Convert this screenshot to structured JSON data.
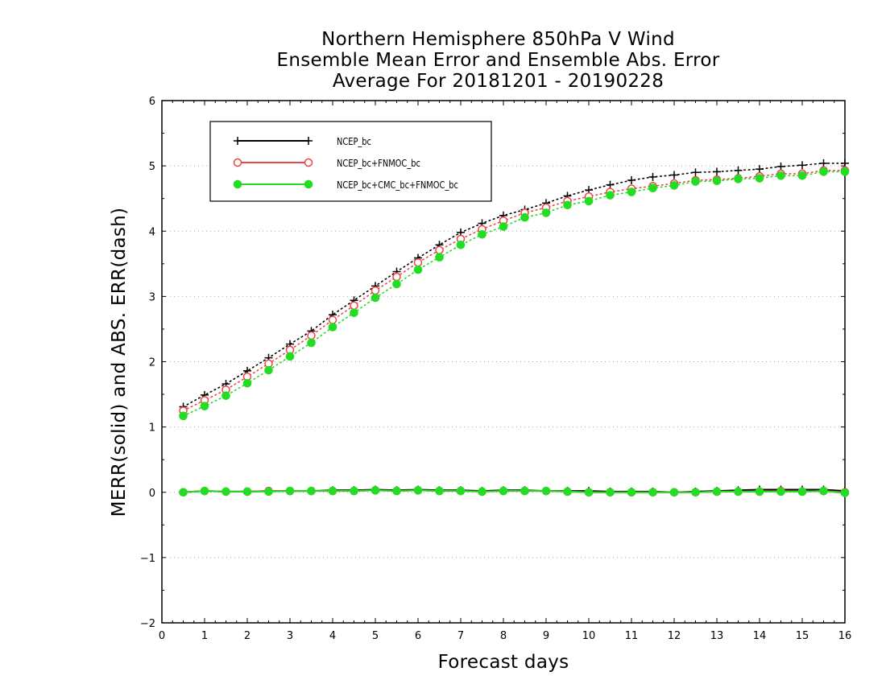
{
  "chart_data": {
    "type": "line",
    "title": [
      "Northern Hemisphere 850hPa V Wind",
      "Ensemble Mean Error and Ensemble Abs. Error",
      "Average For 20181201 - 20190228"
    ],
    "xlabel": "Forecast days",
    "ylabel": "MERR(solid) and ABS. ERR(dash)",
    "xlim": [
      0,
      16
    ],
    "ylim": [
      -2,
      6
    ],
    "xticks": [
      "0",
      "1",
      "2",
      "3",
      "4",
      "5",
      "6",
      "7",
      "8",
      "9",
      "10",
      "11",
      "12",
      "13",
      "14",
      "15",
      "16"
    ],
    "yticks": [
      "-2",
      "-1",
      "0",
      "1",
      "2",
      "3",
      "4",
      "5",
      "6"
    ],
    "grid": "horizontal dotted",
    "legend_position": "top-left",
    "x": [
      0.5,
      1,
      1.5,
      2,
      2.5,
      3,
      3.5,
      4,
      4.5,
      5,
      5.5,
      6,
      6.5,
      7,
      7.5,
      8,
      8.5,
      9,
      9.5,
      10,
      10.5,
      11,
      11.5,
      12,
      12.5,
      13,
      13.5,
      14,
      14.5,
      15,
      15.5,
      16
    ],
    "series": [
      {
        "name": "NCEP_bc",
        "color": "#000000",
        "marker": "plus",
        "abs_err": [
          1.31,
          1.49,
          1.66,
          1.86,
          2.06,
          2.27,
          2.47,
          2.72,
          2.94,
          3.16,
          3.38,
          3.59,
          3.79,
          3.98,
          4.12,
          4.24,
          4.33,
          4.43,
          4.54,
          4.63,
          4.71,
          4.78,
          4.83,
          4.86,
          4.9,
          4.91,
          4.93,
          4.95,
          4.99,
          5.01,
          5.04,
          5.04
        ],
        "mean_err": [
          0.0,
          0.02,
          0.01,
          0.01,
          0.02,
          0.02,
          0.02,
          0.03,
          0.03,
          0.04,
          0.03,
          0.04,
          0.03,
          0.03,
          0.02,
          0.03,
          0.03,
          0.02,
          0.02,
          0.02,
          0.01,
          0.01,
          0.01,
          0.0,
          0.01,
          0.02,
          0.03,
          0.04,
          0.04,
          0.04,
          0.04,
          0.02
        ]
      },
      {
        "name": "NCEP_bc+FNMOC_bc",
        "color": "#ee4444",
        "marker": "open-circle",
        "abs_err": [
          1.25,
          1.41,
          1.57,
          1.77,
          1.97,
          2.18,
          2.4,
          2.64,
          2.86,
          3.09,
          3.3,
          3.52,
          3.71,
          3.88,
          4.03,
          4.16,
          4.28,
          4.36,
          4.46,
          4.53,
          4.6,
          4.65,
          4.69,
          4.73,
          4.78,
          4.79,
          4.81,
          4.84,
          4.88,
          4.88,
          4.93,
          4.93
        ],
        "mean_err": [
          0.0,
          0.02,
          0.01,
          0.01,
          0.02,
          0.02,
          0.02,
          0.02,
          0.02,
          0.03,
          0.02,
          0.03,
          0.02,
          0.02,
          0.01,
          0.02,
          0.02,
          0.02,
          0.01,
          0.0,
          0.0,
          0.0,
          0.0,
          0.0,
          0.0,
          0.01,
          0.01,
          0.01,
          0.02,
          0.01,
          0.02,
          0.0
        ]
      },
      {
        "name": "NCEP_bc+CMC_bc+FNMOC_bc",
        "color": "#22dd22",
        "marker": "filled-circle",
        "abs_err": [
          1.17,
          1.32,
          1.48,
          1.67,
          1.87,
          2.08,
          2.29,
          2.53,
          2.75,
          2.98,
          3.19,
          3.41,
          3.6,
          3.79,
          3.95,
          4.07,
          4.21,
          4.28,
          4.4,
          4.46,
          4.55,
          4.6,
          4.66,
          4.7,
          4.76,
          4.77,
          4.8,
          4.81,
          4.85,
          4.85,
          4.91,
          4.91
        ],
        "mean_err": [
          0.0,
          0.02,
          0.01,
          0.01,
          0.01,
          0.02,
          0.02,
          0.02,
          0.02,
          0.03,
          0.02,
          0.03,
          0.02,
          0.02,
          0.01,
          0.02,
          0.02,
          0.02,
          0.01,
          0.0,
          0.0,
          0.0,
          0.0,
          0.0,
          0.0,
          0.01,
          0.01,
          0.01,
          0.01,
          0.01,
          0.02,
          -0.01
        ]
      }
    ]
  }
}
